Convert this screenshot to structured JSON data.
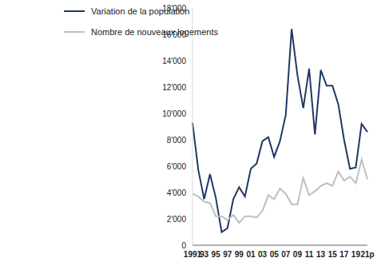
{
  "chart_data": {
    "type": "line",
    "categories": [
      "1991",
      null,
      "93",
      null,
      "95",
      null,
      "97",
      null,
      "99",
      null,
      "01",
      null,
      "03",
      null,
      "05",
      null,
      "07",
      null,
      "09",
      null,
      "11",
      null,
      "13",
      null,
      "15",
      null,
      "17",
      null,
      "19",
      null,
      "21p"
    ],
    "series": [
      {
        "name": "Variation de la population",
        "color": "#1f3864",
        "values": [
          9300,
          5700,
          3500,
          5400,
          3600,
          1000,
          1300,
          3500,
          4400,
          3700,
          5800,
          6200,
          7900,
          8200,
          6700,
          7900,
          9900,
          16400,
          12900,
          10400,
          13400,
          8400,
          13300,
          12100,
          12100,
          10700,
          8000,
          5800,
          5900,
          9200,
          8600
        ]
      },
      {
        "name": "Nombre de nouveaux logements",
        "color": "#bfbfbf",
        "values": [
          3900,
          3700,
          3300,
          3200,
          2200,
          2200,
          1900,
          2300,
          1700,
          2200,
          2200,
          2100,
          2600,
          3800,
          3500,
          4300,
          3900,
          3100,
          3100,
          5100,
          3800,
          4100,
          4500,
          4700,
          4500,
          5600,
          4900,
          5200,
          4700,
          6500,
          5000
        ]
      }
    ],
    "ylim": [
      0,
      18000
    ],
    "yticks": [
      0,
      {
        "value": 2000,
        "label": "2'000"
      },
      {
        "value": 4000,
        "label": "4'000"
      },
      {
        "value": 6000,
        "label": "6'000"
      },
      {
        "value": 8000,
        "label": "8'000"
      },
      {
        "value": 10000,
        "label": "10'000"
      },
      {
        "value": 12000,
        "label": "12'000"
      },
      {
        "value": 14000,
        "label": "14'000"
      },
      {
        "value": 16000,
        "label": "16'000"
      },
      {
        "value": 18000,
        "label": "18'000"
      }
    ],
    "grid": false,
    "legend": "top-left"
  }
}
